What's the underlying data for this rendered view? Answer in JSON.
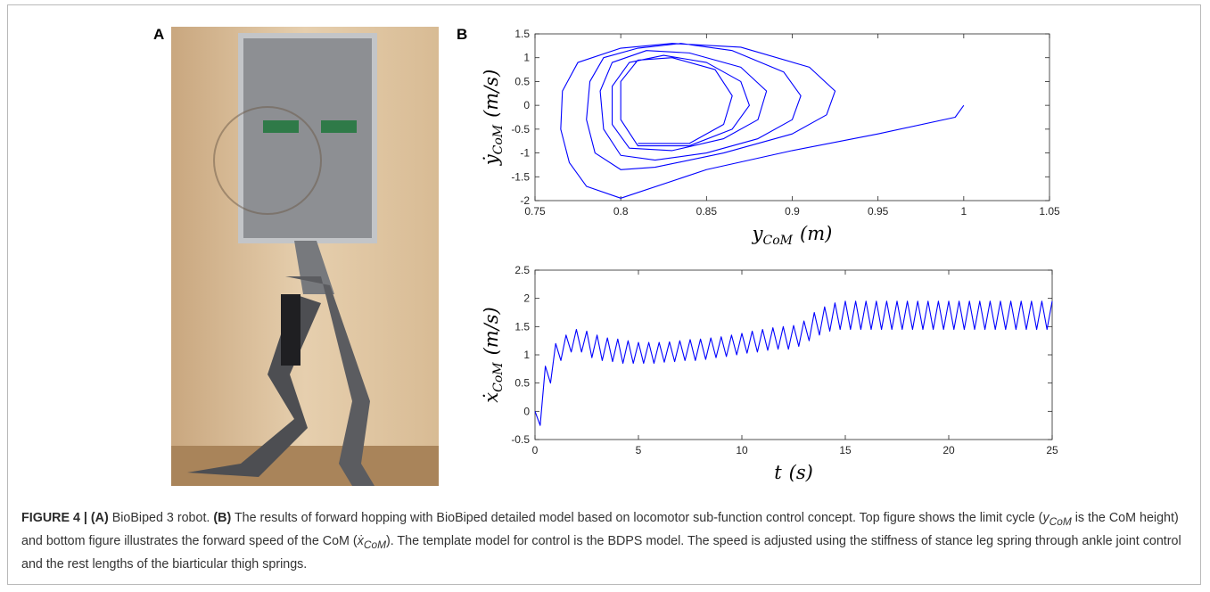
{
  "figure": {
    "panel_a": "A",
    "panel_b": "B",
    "caption": [
      {
        "text": "FIGURE 4 | (A)",
        "style": "b"
      },
      {
        "text": " BioBiped 3 robot. ",
        "style": ""
      },
      {
        "text": "(B)",
        "style": "b"
      },
      {
        "text": " The results of forward hopping with BioBiped detailed model based on locomotor sub-function control concept. Top figure shows the limit cycle (",
        "style": ""
      },
      {
        "text": "y",
        "style": "i"
      },
      {
        "text": "CoM",
        "style": "isub"
      },
      {
        "text": " is the CoM height) and bottom figure illustrates the forward speed of the CoM (",
        "style": ""
      },
      {
        "text": "ẋ",
        "style": "i"
      },
      {
        "text": "CoM",
        "style": "isub"
      },
      {
        "text": "). The template model for control is the BDPS model. The speed is adjusted using the stiffness of stance leg spring through ankle joint control and the rest lengths of the biarticular thigh springs.",
        "style": ""
      }
    ]
  },
  "chart_data": [
    {
      "type": "line",
      "color": "#0000ff",
      "xlabel": {
        "symbol": "y",
        "subscript": "CoM",
        "unit": "(m)"
      },
      "ylabel": {
        "symbol": "ẏ",
        "subscript": "CoM",
        "unit": "(m/s)"
      },
      "xlim": [
        0.75,
        1.05
      ],
      "xticks": [
        0.75,
        0.8,
        0.85,
        0.9,
        0.95,
        1,
        1.05
      ],
      "ylim": [
        -2,
        1.5
      ],
      "yticks": [
        -2,
        -1.5,
        -1,
        -0.5,
        0,
        0.5,
        1,
        1.5
      ],
      "x": [
        1,
        0.995,
        0.95,
        0.9,
        0.85,
        0.8,
        0.78,
        0.77,
        0.765,
        0.766,
        0.775,
        0.8,
        0.83,
        0.87,
        0.91,
        0.925,
        0.92,
        0.9,
        0.86,
        0.82,
        0.8,
        0.785,
        0.78,
        0.782,
        0.79,
        0.81,
        0.835,
        0.865,
        0.895,
        0.905,
        0.9,
        0.88,
        0.85,
        0.82,
        0.8,
        0.79,
        0.788,
        0.795,
        0.815,
        0.84,
        0.87,
        0.885,
        0.88,
        0.86,
        0.83,
        0.805,
        0.795,
        0.795,
        0.805,
        0.825,
        0.85,
        0.87,
        0.875,
        0.865,
        0.84,
        0.81,
        0.8,
        0.8,
        0.81,
        0.83,
        0.855,
        0.865,
        0.86,
        0.84,
        0.81
      ],
      "y": [
        0,
        -0.25,
        -0.6,
        -0.95,
        -1.35,
        -1.95,
        -1.7,
        -1.2,
        -0.5,
        0.3,
        0.9,
        1.2,
        1.3,
        1.22,
        0.8,
        0.3,
        -0.2,
        -0.6,
        -1.0,
        -1.3,
        -1.35,
        -1.0,
        -0.3,
        0.5,
        1.0,
        1.2,
        1.3,
        1.15,
        0.7,
        0.2,
        -0.3,
        -0.7,
        -1.0,
        -1.15,
        -1.05,
        -0.5,
        0.3,
        0.9,
        1.15,
        1.1,
        0.8,
        0.3,
        -0.3,
        -0.7,
        -0.95,
        -0.9,
        -0.4,
        0.4,
        0.9,
        1.05,
        0.9,
        0.5,
        0,
        -0.5,
        -0.85,
        -0.85,
        -0.3,
        0.5,
        0.95,
        1.0,
        0.75,
        0.2,
        -0.4,
        -0.8,
        -0.8
      ]
    },
    {
      "type": "line",
      "color": "#0000ff",
      "xlabel": {
        "symbol": "t",
        "subscript": "",
        "unit": "(s)"
      },
      "ylabel": {
        "symbol": "ẋ",
        "subscript": "CoM",
        "unit": "(m/s)"
      },
      "xlim": [
        0,
        25
      ],
      "xticks": [
        0,
        5,
        10,
        15,
        20,
        25
      ],
      "ylim": [
        -0.5,
        2.5
      ],
      "yticks": [
        -0.5,
        0,
        0.5,
        1,
        1.5,
        2,
        2.5
      ],
      "x": [
        0,
        0.25,
        0.5,
        0.75,
        1,
        1.25,
        1.5,
        1.75,
        2,
        2.25,
        2.5,
        2.75,
        3,
        3.25,
        3.5,
        3.75,
        4,
        4.25,
        4.5,
        4.75,
        5,
        5.25,
        5.5,
        5.75,
        6,
        6.25,
        6.5,
        6.75,
        7,
        7.25,
        7.5,
        7.75,
        8,
        8.25,
        8.5,
        8.75,
        9,
        9.25,
        9.5,
        9.75,
        10,
        10.25,
        10.5,
        10.75,
        11,
        11.25,
        11.5,
        11.75,
        12,
        12.25,
        12.5,
        12.75,
        13,
        13.25,
        13.5,
        13.75,
        14,
        14.25,
        14.5,
        14.75,
        15,
        15.25,
        15.5,
        15.75,
        16,
        16.25,
        16.5,
        16.75,
        17,
        17.25,
        17.5,
        17.75,
        18,
        18.25,
        18.5,
        18.75,
        19,
        19.25,
        19.5,
        19.75,
        20,
        20.25,
        20.5,
        20.75,
        21,
        21.25,
        21.5,
        21.75,
        22,
        22.25,
        22.5,
        22.75,
        23,
        23.25,
        23.5,
        23.75,
        24,
        24.25,
        24.5,
        24.75,
        25
      ],
      "y": [
        0,
        -0.25,
        0.8,
        0.5,
        1.2,
        0.9,
        1.35,
        1.05,
        1.45,
        1.05,
        1.42,
        0.95,
        1.35,
        0.9,
        1.3,
        0.88,
        1.28,
        0.85,
        1.25,
        0.85,
        1.22,
        0.85,
        1.22,
        0.85,
        1.22,
        0.87,
        1.23,
        0.88,
        1.25,
        0.9,
        1.27,
        0.9,
        1.28,
        0.92,
        1.3,
        0.95,
        1.32,
        0.97,
        1.35,
        1.0,
        1.38,
        1.03,
        1.42,
        1.05,
        1.45,
        1.08,
        1.48,
        1.1,
        1.5,
        1.1,
        1.52,
        1.15,
        1.6,
        1.25,
        1.75,
        1.35,
        1.85,
        1.42,
        1.92,
        1.45,
        1.95,
        1.45,
        1.95,
        1.45,
        1.95,
        1.45,
        1.95,
        1.45,
        1.95,
        1.45,
        1.95,
        1.45,
        1.95,
        1.45,
        1.95,
        1.45,
        1.95,
        1.45,
        1.95,
        1.45,
        1.95,
        1.45,
        1.95,
        1.45,
        1.95,
        1.45,
        1.95,
        1.45,
        1.95,
        1.45,
        1.95,
        1.45,
        1.95,
        1.45,
        1.95,
        1.45,
        1.95,
        1.45,
        1.95,
        1.45,
        1.95
      ]
    }
  ]
}
